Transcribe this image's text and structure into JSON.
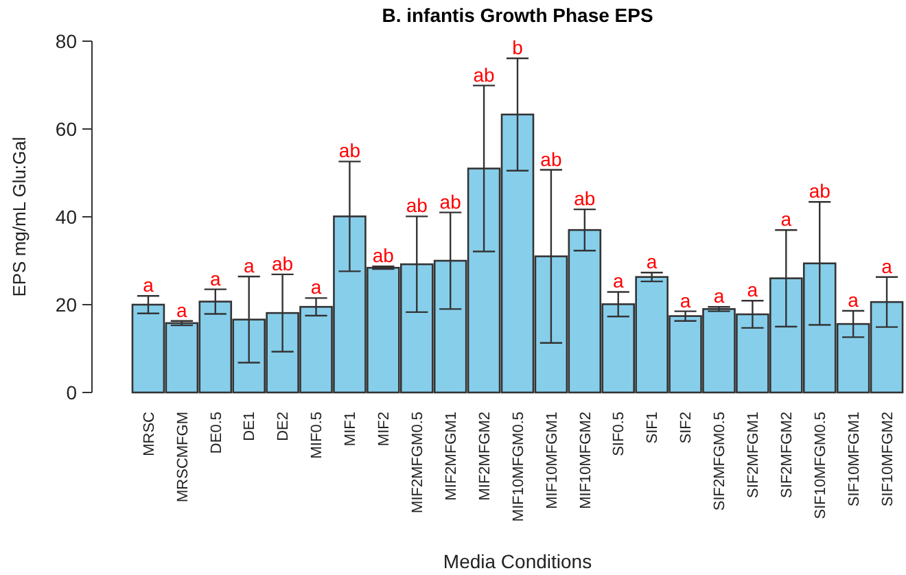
{
  "chart_data": {
    "type": "bar",
    "title": "B. infantis Growth Phase EPS",
    "xlabel": "Media Conditions",
    "ylabel": "EPS mg/mL Glu:Gal",
    "categories": [
      "MRSC",
      "MRSCMFGM",
      "DE0.5",
      "DE1",
      "DE2",
      "MIF0.5",
      "MIF1",
      "MIF2",
      "MIF2MFGM0.5",
      "MIF2MFGM1",
      "MIF2MFGM2",
      "MIF10MFGM0.5",
      "MIF10MFGM1",
      "MIF10MFGM2",
      "SIF0.5",
      "SIF1",
      "SIF2",
      "SIF2MFGM0.5",
      "SIF2MFGM1",
      "SIF2MFGM2",
      "SIF10MFGM0.5",
      "SIF10MFGM1",
      "SIF10MFGM2"
    ],
    "values": [
      20,
      15.8,
      20.7,
      16.6,
      18.1,
      19.5,
      40.1,
      28.4,
      29.2,
      30,
      51,
      63.3,
      31,
      37,
      20.1,
      26.3,
      17.4,
      19,
      17.8,
      26,
      29.4,
      15.6,
      20.6
    ],
    "errors": [
      2,
      0.5,
      2.8,
      9.8,
      8.8,
      2,
      12.5,
      0.3,
      10.9,
      11,
      18.9,
      12.8,
      19.7,
      4.7,
      2.8,
      1,
      1.1,
      0.5,
      3.1,
      11,
      14,
      3,
      5.7
    ],
    "color": "#87ceeb",
    "ylim": [
      0,
      80
    ],
    "yticks": [
      0,
      20,
      40,
      60,
      80
    ],
    "grid": false,
    "annotations": [
      {
        "text": "a",
        "x": "MRSC",
        "y": 22
      },
      {
        "text": "a",
        "x": "MRSCMFGM",
        "y": 16.3
      },
      {
        "text": "a",
        "x": "DE0.5",
        "y": 23.5
      },
      {
        "text": "a",
        "x": "DE1",
        "y": 26.4
      },
      {
        "text": "ab",
        "x": "DE2",
        "y": 26.9
      },
      {
        "text": "a",
        "x": "MIF0.5",
        "y": 21.5
      },
      {
        "text": "ab",
        "x": "MIF1",
        "y": 52.6
      },
      {
        "text": "ab",
        "x": "MIF2",
        "y": 28.7
      },
      {
        "text": "ab",
        "x": "MIF2MFGM0.5",
        "y": 40.1
      },
      {
        "text": "ab",
        "x": "MIF2MFGM1",
        "y": 41
      },
      {
        "text": "ab",
        "x": "MIF2MFGM2",
        "y": 69.9
      },
      {
        "text": "b",
        "x": "MIF10MFGM0.5",
        "y": 76.1
      },
      {
        "text": "ab",
        "x": "MIF10MFGM1",
        "y": 50.7
      },
      {
        "text": "ab",
        "x": "MIF10MFGM2",
        "y": 41.7
      },
      {
        "text": "a",
        "x": "SIF0.5",
        "y": 22.9
      },
      {
        "text": "a",
        "x": "SIF1",
        "y": 27.3
      },
      {
        "text": "a",
        "x": "SIF2",
        "y": 18.5
      },
      {
        "text": "a",
        "x": "SIF2MFGM0.5",
        "y": 19.5
      },
      {
        "text": "a",
        "x": "SIF2MFGM1",
        "y": 20.9
      },
      {
        "text": "a",
        "x": "SIF2MFGM2",
        "y": 37
      },
      {
        "text": "ab",
        "x": "SIF10MFGM0.5",
        "y": 43.4
      },
      {
        "text": "a",
        "x": "SIF10MFGM1",
        "y": 18.6
      },
      {
        "text": "a",
        "x": "SIF10MFGM2",
        "y": 26.3
      }
    ]
  }
}
